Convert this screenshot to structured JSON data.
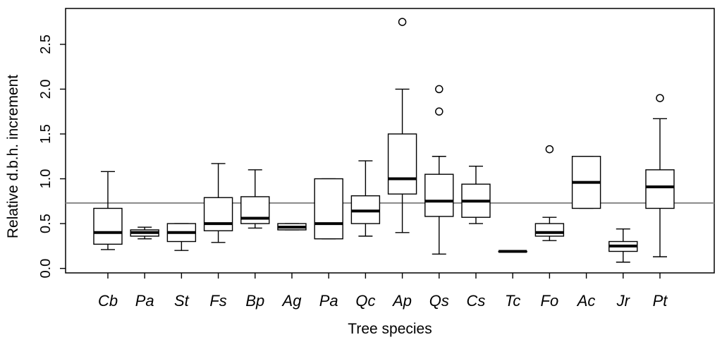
{
  "chart_data": {
    "type": "boxplot",
    "xlabel": "Tree species",
    "ylabel": "Relative d.b.h. increment",
    "ylim": [
      -0.05,
      2.9
    ],
    "yticks": [
      0.0,
      0.5,
      1.0,
      1.5,
      2.0,
      2.5
    ],
    "ytick_labels": [
      "0.0",
      "0.5",
      "1.0",
      "1.5",
      "2.0",
      "2.5"
    ],
    "reference_line": 0.73,
    "reference_color": "#888888",
    "categories": [
      "Cb",
      "Pa",
      "St",
      "Fs",
      "Bp",
      "Ag",
      "Pa",
      "Qc",
      "Ap",
      "Qs",
      "Cs",
      "Tc",
      "Fo",
      "Ac",
      "Jr",
      "Pt"
    ],
    "boxes": [
      {
        "name": "Cb",
        "whisker_low": 0.21,
        "q1": 0.27,
        "median": 0.4,
        "q3": 0.67,
        "whisker_high": 1.08,
        "outliers": []
      },
      {
        "name": "Pa",
        "whisker_low": 0.33,
        "q1": 0.36,
        "median": 0.4,
        "q3": 0.43,
        "whisker_high": 0.46,
        "outliers": []
      },
      {
        "name": "St",
        "whisker_low": 0.2,
        "q1": 0.3,
        "median": 0.4,
        "q3": 0.5,
        "whisker_high": 0.5,
        "outliers": []
      },
      {
        "name": "Fs",
        "whisker_low": 0.29,
        "q1": 0.42,
        "median": 0.5,
        "q3": 0.79,
        "whisker_high": 1.17,
        "outliers": []
      },
      {
        "name": "Bp",
        "whisker_low": 0.45,
        "q1": 0.5,
        "median": 0.56,
        "q3": 0.8,
        "whisker_high": 1.1,
        "outliers": []
      },
      {
        "name": "Ag",
        "whisker_low": 0.43,
        "q1": 0.43,
        "median": 0.46,
        "q3": 0.5,
        "whisker_high": 0.5,
        "outliers": []
      },
      {
        "name": "Pa",
        "whisker_low": 0.33,
        "q1": 0.33,
        "median": 0.5,
        "q3": 1.0,
        "whisker_high": 1.0,
        "outliers": []
      },
      {
        "name": "Qc",
        "whisker_low": 0.36,
        "q1": 0.5,
        "median": 0.64,
        "q3": 0.81,
        "whisker_high": 1.2,
        "outliers": []
      },
      {
        "name": "Ap",
        "whisker_low": 0.4,
        "q1": 0.83,
        "median": 1.0,
        "q3": 1.5,
        "whisker_high": 2.0,
        "outliers": [
          2.75
        ]
      },
      {
        "name": "Qs",
        "whisker_low": 0.16,
        "q1": 0.58,
        "median": 0.75,
        "q3": 1.05,
        "whisker_high": 1.25,
        "outliers": [
          1.75,
          2.0
        ]
      },
      {
        "name": "Cs",
        "whisker_low": 0.5,
        "q1": 0.57,
        "median": 0.75,
        "q3": 0.94,
        "whisker_high": 1.14,
        "outliers": []
      },
      {
        "name": "Tc",
        "whisker_low": 0.19,
        "q1": 0.19,
        "median": 0.19,
        "q3": 0.19,
        "whisker_high": 0.19,
        "outliers": []
      },
      {
        "name": "Fo",
        "whisker_low": 0.31,
        "q1": 0.36,
        "median": 0.4,
        "q3": 0.5,
        "whisker_high": 0.57,
        "outliers": [
          1.33
        ]
      },
      {
        "name": "Ac",
        "whisker_low": 0.67,
        "q1": 0.67,
        "median": 0.96,
        "q3": 1.25,
        "whisker_high": 1.25,
        "outliers": []
      },
      {
        "name": "Jr",
        "whisker_low": 0.07,
        "q1": 0.19,
        "median": 0.25,
        "q3": 0.3,
        "whisker_high": 0.44,
        "outliers": []
      },
      {
        "name": "Pt",
        "whisker_low": 0.13,
        "q1": 0.67,
        "median": 0.91,
        "q3": 1.1,
        "whisker_high": 1.67,
        "outliers": [
          1.9
        ]
      }
    ]
  }
}
